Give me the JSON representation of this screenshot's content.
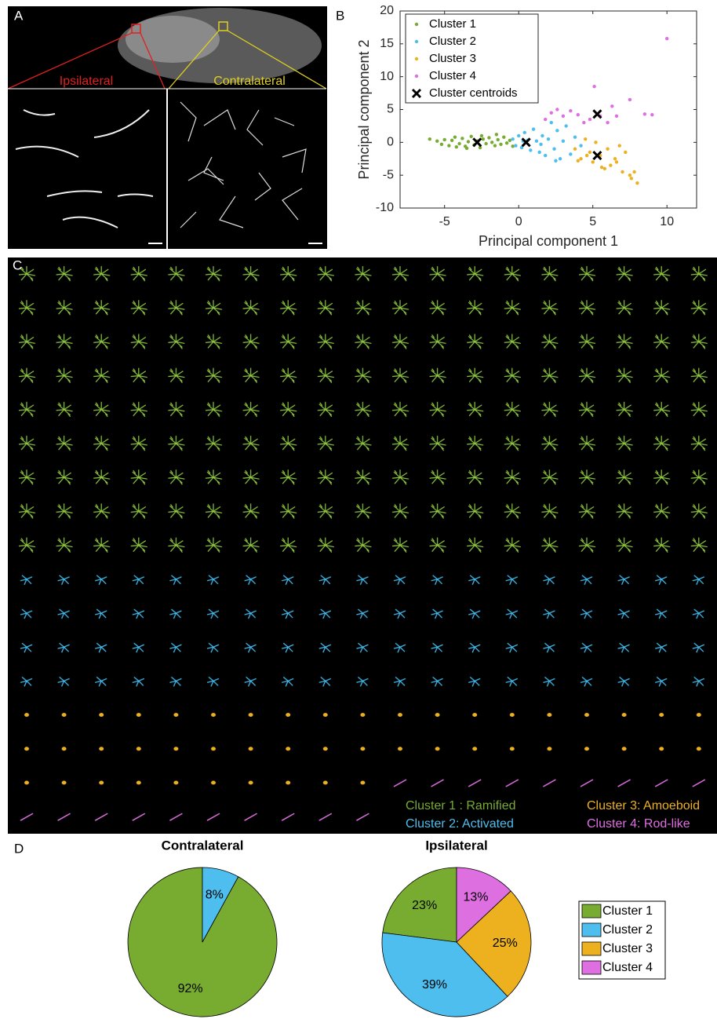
{
  "panel_labels": [
    "A",
    "B",
    "C",
    "D"
  ],
  "panel_a": {
    "left_label": "Ipsilateral",
    "right_label": "Contralateral"
  },
  "panel_c": {
    "legend": [
      "Cluster 1 : Ramified",
      "Cluster 2: Activated",
      "Cluster 3: Amoeboid",
      "Cluster 4: Rod-like"
    ]
  },
  "chart_data": [
    {
      "type": "scatter",
      "xlabel": "Principal component 1",
      "ylabel": "Principal component 2",
      "xlim": [
        -8,
        12
      ],
      "xticks": [
        -5,
        0,
        5,
        10
      ],
      "ylim": [
        -10,
        20
      ],
      "yticks": [
        -10,
        -5,
        0,
        5,
        10,
        15,
        20
      ],
      "legend": "upper left",
      "series": [
        {
          "name": "Cluster 1",
          "color": "#77ac30",
          "x": [
            -6,
            -5.5,
            -5.2,
            -5,
            -4.7,
            -4.5,
            -4.3,
            -4,
            -3.8,
            -3.6,
            -3.4,
            -3.2,
            -3,
            -2.8,
            -2.6,
            -2.4,
            -2.2,
            -2,
            -1.8,
            -1.6,
            -1.4,
            -1.2,
            -1,
            -0.8,
            -0.6,
            -0.4,
            -3.5,
            -2.5,
            -1.5,
            -4.2
          ],
          "values": [
            0.5,
            0.2,
            -0.3,
            0.4,
            -0.5,
            0.3,
            0.8,
            -0.2,
            0.6,
            -0.6,
            0.1,
            0.9,
            -0.4,
            0.2,
            -0.8,
            0.5,
            -0.2,
            0.7,
            0,
            -0.5,
            0.4,
            -0.3,
            0.8,
            -0.1,
            0.3,
            -0.6,
            -0.9,
            1.0,
            1.2,
            -0.7
          ]
        },
        {
          "name": "Cluster 2",
          "color": "#4dbeee",
          "x": [
            -0.4,
            -0.2,
            0,
            0.2,
            0.4,
            0.6,
            0.8,
            1,
            1.2,
            1.4,
            1.6,
            1.8,
            2,
            2.2,
            2.4,
            2.6,
            2.8,
            3,
            3.2,
            3.5,
            3.8,
            4.2,
            1.5,
            0.3,
            2.5
          ],
          "values": [
            0.5,
            -0.5,
            1,
            -0.8,
            1.5,
            0.3,
            -1.2,
            2,
            0.2,
            -1.5,
            1,
            -2,
            0.5,
            3,
            -1,
            1.8,
            -2.5,
            0.2,
            2.5,
            -1.8,
            0.8,
            -0.5,
            -0.3,
            0.2,
            -2.8
          ]
        },
        {
          "name": "Cluster 3",
          "color": "#edb120",
          "x": [
            3.8,
            4.2,
            4.5,
            4.8,
            5,
            5.2,
            5.5,
            5.8,
            6,
            6.2,
            6.5,
            6.8,
            7,
            7.2,
            7.5,
            7.8,
            8,
            4.6,
            5.6,
            6.6,
            7.6,
            4
          ],
          "values": [
            -1,
            -2.5,
            0.5,
            -1.5,
            -3,
            0,
            -2,
            -4,
            -1,
            -3.5,
            -2.5,
            -0.5,
            -4.5,
            -1.5,
            -5,
            -4.5,
            -6.2,
            -2,
            -3.8,
            -3,
            -5.5,
            -2.8
          ]
        },
        {
          "name": "Cluster 4",
          "color": "#de6fe0",
          "x": [
            1.8,
            2.2,
            2.6,
            3,
            3.5,
            4,
            4.4,
            4.8,
            5.1,
            5.5,
            6,
            6.3,
            6.6,
            7.5,
            8.5,
            9,
            10
          ],
          "values": [
            3.5,
            4.5,
            5,
            4,
            4.8,
            4.2,
            3,
            3.5,
            8.5,
            4,
            3,
            5.5,
            4,
            6.5,
            4.3,
            4.2,
            15.8
          ]
        },
        {
          "name": "Cluster centroids",
          "color": "#000000",
          "marker": "x",
          "x": [
            -2.8,
            0.5,
            5.3,
            5.3
          ],
          "values": [
            0,
            0,
            -2,
            4.3
          ]
        }
      ]
    },
    {
      "type": "pie",
      "title": "Contralateral",
      "values": [
        92,
        8
      ],
      "value_labels": [
        "92%",
        "8%"
      ],
      "colors": [
        "#77ac30",
        "#4dbeee"
      ]
    },
    {
      "type": "pie",
      "title": "Ipsilateral",
      "categories": [
        "Cluster 1",
        "Cluster 2",
        "Cluster 3",
        "Cluster 4"
      ],
      "values": [
        23,
        39,
        25,
        13
      ],
      "value_labels": [
        "23%",
        "39%",
        "25%",
        "13%"
      ],
      "colors": [
        "#77ac30",
        "#4dbeee",
        "#edb120",
        "#de6fe0"
      ],
      "legend": "right"
    }
  ]
}
